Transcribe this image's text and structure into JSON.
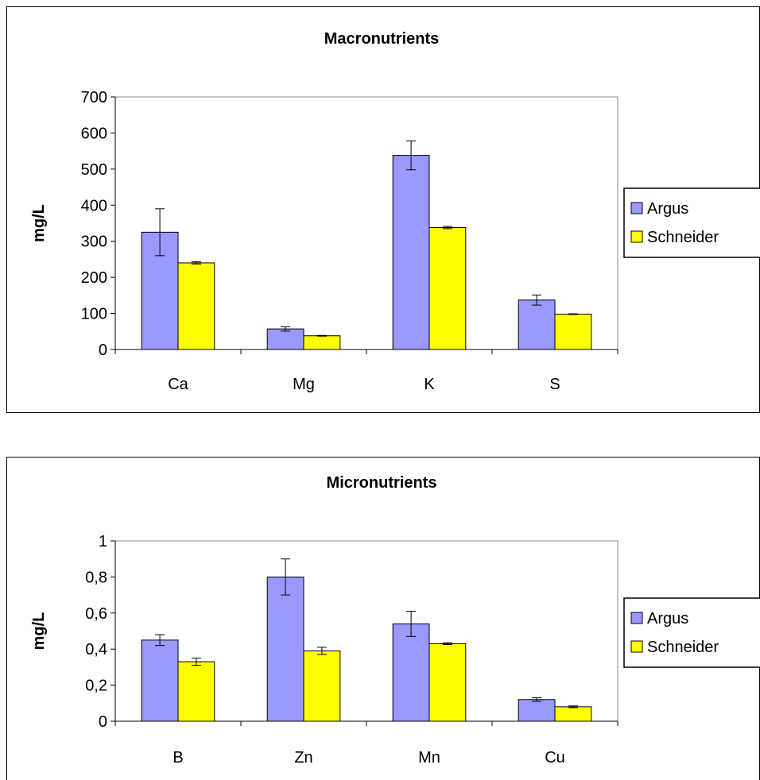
{
  "colors": {
    "argus": "#9999ff",
    "schneider": "#ffff00"
  },
  "chart_data": [
    {
      "type": "bar",
      "title": "Macronutrients",
      "ylabel": "mg/L",
      "xlabel": "",
      "categories": [
        "Ca",
        "Mg",
        "K",
        "S"
      ],
      "ylim": [
        0,
        700
      ],
      "yticks": [
        0,
        100,
        200,
        300,
        400,
        500,
        600,
        700
      ],
      "ytick_labels": [
        "0",
        "100",
        "200",
        "300",
        "400",
        "500",
        "600",
        "700"
      ],
      "legend_position": "right",
      "grid": false,
      "series": [
        {
          "name": "Argus",
          "values": [
            325,
            57,
            538,
            137
          ],
          "errors": [
            65,
            6,
            40,
            14
          ]
        },
        {
          "name": "Schneider",
          "values": [
            240,
            38,
            338,
            98
          ],
          "errors": [
            3,
            1,
            3,
            1
          ]
        }
      ]
    },
    {
      "type": "bar",
      "title": "Micronutrients",
      "ylabel": "mg/L",
      "xlabel": "",
      "categories": [
        "B",
        "Zn",
        "Mn",
        "Cu"
      ],
      "ylim": [
        0,
        1
      ],
      "yticks": [
        0,
        0.2,
        0.4,
        0.6,
        0.8,
        1
      ],
      "ytick_labels": [
        "0",
        "0,2",
        "0,4",
        "0,6",
        "0,8",
        "1"
      ],
      "legend_position": "right",
      "grid": false,
      "series": [
        {
          "name": "Argus",
          "values": [
            0.45,
            0.8,
            0.54,
            0.12
          ],
          "errors": [
            0.03,
            0.1,
            0.07,
            0.01
          ]
        },
        {
          "name": "Schneider",
          "values": [
            0.33,
            0.39,
            0.43,
            0.08
          ],
          "errors": [
            0.02,
            0.02,
            0.005,
            0.005
          ]
        }
      ]
    }
  ]
}
